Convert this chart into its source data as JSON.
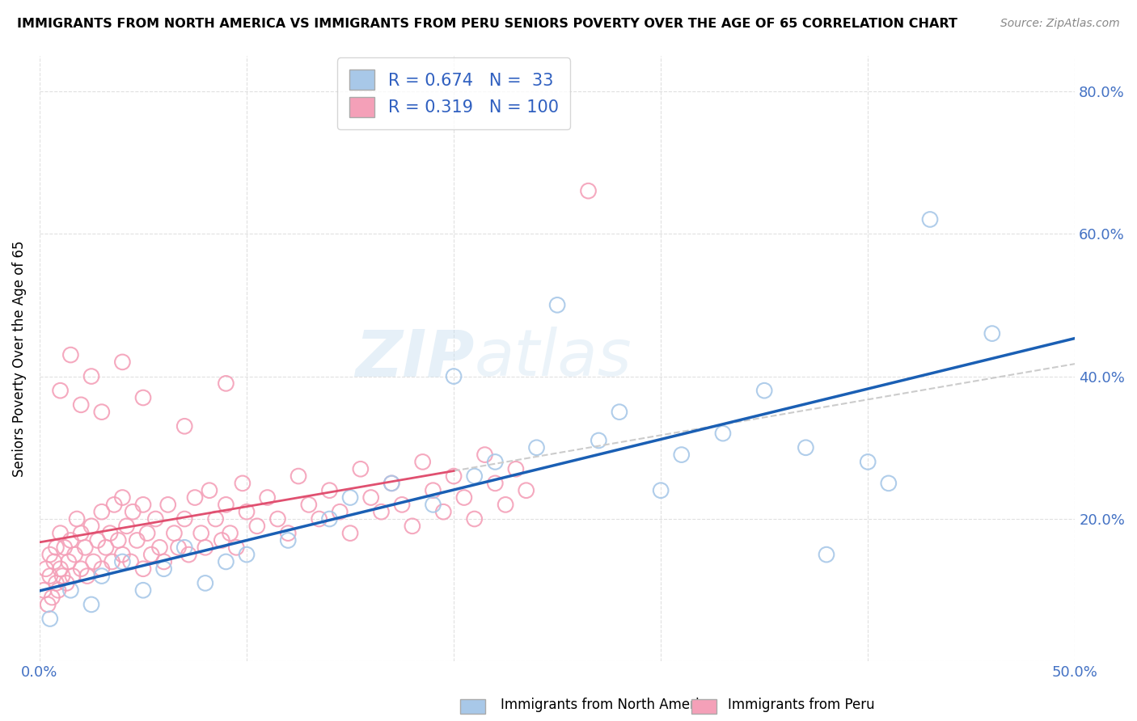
{
  "title": "IMMIGRANTS FROM NORTH AMERICA VS IMMIGRANTS FROM PERU SENIORS POVERTY OVER THE AGE OF 65 CORRELATION CHART",
  "source": "Source: ZipAtlas.com",
  "ylabel": "Seniors Poverty Over the Age of 65",
  "xlim": [
    0.0,
    0.5
  ],
  "ylim": [
    0.0,
    0.85
  ],
  "xticks": [
    0.0,
    0.1,
    0.2,
    0.3,
    0.4,
    0.5
  ],
  "xticklabels": [
    "0.0%",
    "",
    "",
    "",
    "",
    "50.0%"
  ],
  "yticks": [
    0.0,
    0.2,
    0.4,
    0.6,
    0.8
  ],
  "yticklabels": [
    "",
    "20.0%",
    "40.0%",
    "60.0%",
    "80.0%"
  ],
  "R_blue": 0.674,
  "N_blue": 33,
  "R_pink": 0.319,
  "N_pink": 100,
  "color_blue": "#a8c8e8",
  "color_pink": "#f4a0b8",
  "line_blue": "#1a5fb4",
  "line_pink": "#e05070",
  "line_dashed": "#cccccc",
  "watermark": "ZIPatlas",
  "legend_text_color": "#3060c0",
  "tick_color": "#4472c4",
  "blue_x": [
    0.005,
    0.015,
    0.025,
    0.03,
    0.04,
    0.05,
    0.06,
    0.07,
    0.08,
    0.09,
    0.1,
    0.12,
    0.14,
    0.15,
    0.17,
    0.19,
    0.2,
    0.21,
    0.22,
    0.24,
    0.25,
    0.27,
    0.28,
    0.3,
    0.31,
    0.33,
    0.35,
    0.37,
    0.38,
    0.4,
    0.41,
    0.43,
    0.46
  ],
  "blue_y": [
    0.06,
    0.1,
    0.08,
    0.12,
    0.14,
    0.1,
    0.13,
    0.16,
    0.11,
    0.14,
    0.15,
    0.17,
    0.2,
    0.23,
    0.25,
    0.22,
    0.4,
    0.26,
    0.28,
    0.3,
    0.5,
    0.31,
    0.35,
    0.24,
    0.29,
    0.32,
    0.38,
    0.3,
    0.15,
    0.28,
    0.25,
    0.62,
    0.46
  ],
  "pink_x": [
    0.002,
    0.003,
    0.004,
    0.005,
    0.005,
    0.006,
    0.007,
    0.008,
    0.008,
    0.009,
    0.01,
    0.01,
    0.011,
    0.012,
    0.013,
    0.014,
    0.015,
    0.016,
    0.017,
    0.018,
    0.02,
    0.02,
    0.022,
    0.023,
    0.025,
    0.026,
    0.028,
    0.03,
    0.03,
    0.032,
    0.034,
    0.035,
    0.036,
    0.038,
    0.04,
    0.04,
    0.042,
    0.044,
    0.045,
    0.047,
    0.05,
    0.05,
    0.052,
    0.054,
    0.056,
    0.058,
    0.06,
    0.062,
    0.065,
    0.067,
    0.07,
    0.072,
    0.075,
    0.078,
    0.08,
    0.082,
    0.085,
    0.088,
    0.09,
    0.092,
    0.095,
    0.098,
    0.1,
    0.105,
    0.11,
    0.115,
    0.12,
    0.125,
    0.13,
    0.135,
    0.14,
    0.145,
    0.15,
    0.155,
    0.16,
    0.165,
    0.17,
    0.175,
    0.18,
    0.185,
    0.19,
    0.195,
    0.2,
    0.205,
    0.21,
    0.215,
    0.22,
    0.225,
    0.23,
    0.235,
    0.01,
    0.015,
    0.02,
    0.025,
    0.03,
    0.04,
    0.05,
    0.07,
    0.09,
    0.265
  ],
  "pink_y": [
    0.1,
    0.13,
    0.08,
    0.12,
    0.15,
    0.09,
    0.14,
    0.11,
    0.16,
    0.1,
    0.13,
    0.18,
    0.12,
    0.16,
    0.11,
    0.14,
    0.17,
    0.12,
    0.15,
    0.2,
    0.13,
    0.18,
    0.16,
    0.12,
    0.19,
    0.14,
    0.17,
    0.13,
    0.21,
    0.16,
    0.18,
    0.14,
    0.22,
    0.17,
    0.15,
    0.23,
    0.19,
    0.14,
    0.21,
    0.17,
    0.13,
    0.22,
    0.18,
    0.15,
    0.2,
    0.16,
    0.14,
    0.22,
    0.18,
    0.16,
    0.2,
    0.15,
    0.23,
    0.18,
    0.16,
    0.24,
    0.2,
    0.17,
    0.22,
    0.18,
    0.16,
    0.25,
    0.21,
    0.19,
    0.23,
    0.2,
    0.18,
    0.26,
    0.22,
    0.2,
    0.24,
    0.21,
    0.18,
    0.27,
    0.23,
    0.21,
    0.25,
    0.22,
    0.19,
    0.28,
    0.24,
    0.21,
    0.26,
    0.23,
    0.2,
    0.29,
    0.25,
    0.22,
    0.27,
    0.24,
    0.38,
    0.43,
    0.36,
    0.4,
    0.35,
    0.42,
    0.37,
    0.33,
    0.39,
    0.66
  ]
}
